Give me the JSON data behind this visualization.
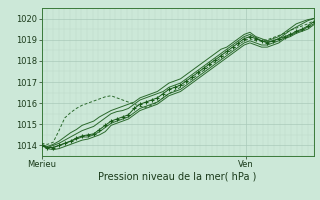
{
  "xlabel": "Pression niveau de la mer( hPa )",
  "ylim": [
    1013.5,
    1020.5
  ],
  "xlim": [
    0,
    48
  ],
  "yticks": [
    1014,
    1015,
    1016,
    1017,
    1018,
    1019,
    1020
  ],
  "xtick_positions": [
    0,
    36
  ],
  "xtick_labels": [
    "Merieu",
    "Ven"
  ],
  "bg_color": "#cce8d8",
  "plot_bg_color": "#cce8d8",
  "grid_major_color": "#aacaba",
  "grid_minor_color": "#bcd8c8",
  "line_color": "#1a5c1a",
  "main_line": [
    1014.0,
    1013.9,
    1013.9,
    1014.0,
    1014.1,
    1014.2,
    1014.35,
    1014.45,
    1014.5,
    1014.55,
    1014.75,
    1014.95,
    1015.15,
    1015.25,
    1015.35,
    1015.45,
    1015.75,
    1015.95,
    1016.05,
    1016.15,
    1016.25,
    1016.45,
    1016.65,
    1016.75,
    1016.85,
    1017.05,
    1017.25,
    1017.45,
    1017.65,
    1017.85,
    1018.05,
    1018.25,
    1018.45,
    1018.65,
    1018.85,
    1019.05,
    1019.15,
    1019.05,
    1018.95,
    1018.85,
    1018.95,
    1019.05,
    1019.15,
    1019.25,
    1019.4,
    1019.5,
    1019.65,
    1019.85
  ],
  "upper_line1": [
    1014.0,
    1013.9,
    1014.0,
    1014.1,
    1014.25,
    1014.4,
    1014.55,
    1014.7,
    1014.8,
    1014.9,
    1015.1,
    1015.3,
    1015.5,
    1015.6,
    1015.65,
    1015.75,
    1015.95,
    1016.15,
    1016.25,
    1016.35,
    1016.45,
    1016.55,
    1016.75,
    1016.85,
    1016.95,
    1017.15,
    1017.35,
    1017.55,
    1017.75,
    1017.95,
    1018.15,
    1018.35,
    1018.55,
    1018.75,
    1018.95,
    1019.15,
    1019.25,
    1019.1,
    1018.95,
    1018.9,
    1018.95,
    1019.05,
    1019.25,
    1019.45,
    1019.6,
    1019.75,
    1019.9,
    1020.0
  ],
  "upper_line2": [
    1014.05,
    1013.95,
    1014.05,
    1014.2,
    1014.4,
    1014.6,
    1014.75,
    1014.95,
    1015.05,
    1015.15,
    1015.35,
    1015.5,
    1015.65,
    1015.75,
    1015.85,
    1015.95,
    1016.05,
    1016.25,
    1016.35,
    1016.45,
    1016.55,
    1016.75,
    1016.95,
    1017.05,
    1017.15,
    1017.35,
    1017.55,
    1017.75,
    1017.95,
    1018.15,
    1018.35,
    1018.55,
    1018.65,
    1018.85,
    1019.05,
    1019.25,
    1019.35,
    1019.15,
    1019.05,
    1018.95,
    1019.05,
    1019.15,
    1019.35,
    1019.55,
    1019.75,
    1019.85,
    1019.95,
    1020.0
  ],
  "lower_line1": [
    1014.0,
    1013.9,
    1013.9,
    1014.0,
    1014.1,
    1014.2,
    1014.3,
    1014.4,
    1014.4,
    1014.5,
    1014.65,
    1014.85,
    1015.05,
    1015.15,
    1015.25,
    1015.35,
    1015.55,
    1015.75,
    1015.85,
    1015.95,
    1016.05,
    1016.25,
    1016.45,
    1016.55,
    1016.65,
    1016.85,
    1017.05,
    1017.25,
    1017.45,
    1017.65,
    1017.85,
    1018.05,
    1018.25,
    1018.45,
    1018.65,
    1018.85,
    1018.95,
    1018.85,
    1018.75,
    1018.75,
    1018.85,
    1018.95,
    1019.1,
    1019.2,
    1019.35,
    1019.45,
    1019.6,
    1019.75
  ],
  "lower_line2": [
    1014.0,
    1013.85,
    1013.8,
    1013.85,
    1013.95,
    1014.05,
    1014.15,
    1014.25,
    1014.3,
    1014.4,
    1014.5,
    1014.65,
    1014.95,
    1015.05,
    1015.15,
    1015.25,
    1015.45,
    1015.65,
    1015.75,
    1015.85,
    1015.95,
    1016.15,
    1016.35,
    1016.45,
    1016.55,
    1016.75,
    1016.95,
    1017.15,
    1017.35,
    1017.55,
    1017.75,
    1017.95,
    1018.15,
    1018.35,
    1018.55,
    1018.75,
    1018.85,
    1018.75,
    1018.65,
    1018.65,
    1018.75,
    1018.85,
    1019.05,
    1019.15,
    1019.3,
    1019.4,
    1019.5,
    1019.7
  ],
  "outlier_line": [
    1014.1,
    1014.05,
    1014.15,
    1014.7,
    1015.3,
    1015.55,
    1015.75,
    1015.9,
    1016.0,
    1016.1,
    1016.2,
    1016.3,
    1016.35,
    1016.25,
    1016.15,
    1016.05,
    1015.95,
    1015.85,
    1015.8,
    1015.9,
    1016.05,
    1016.25,
    1016.45,
    1016.6,
    1016.75,
    1016.95,
    1017.15,
    1017.35,
    1017.55,
    1017.75,
    1017.95,
    1018.15,
    1018.35,
    1018.55,
    1018.75,
    1018.95,
    1019.05,
    1018.95,
    1018.95,
    1019.0,
    1019.1,
    1019.2,
    1019.3,
    1019.45,
    1019.55,
    1019.65,
    1019.75,
    1019.9
  ]
}
